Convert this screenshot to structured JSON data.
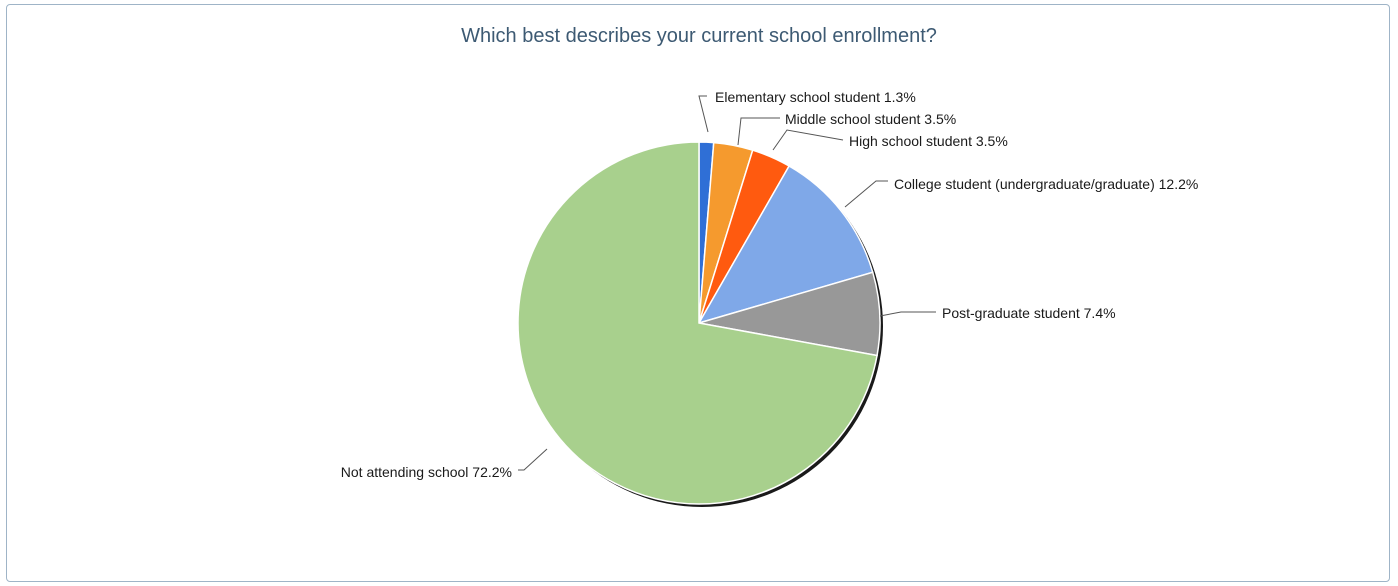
{
  "chart_data": {
    "type": "pie",
    "title": "Which best describes your current school enrollment?",
    "start_angle_deg": 0,
    "direction": "clockwise",
    "slices": [
      {
        "label": "Elementary school student",
        "value": 1.3,
        "value_label": "1.3%",
        "color": "#2f6fd6"
      },
      {
        "label": "Middle school student",
        "value": 3.5,
        "value_label": "3.5%",
        "color": "#f59a2e"
      },
      {
        "label": "High school student",
        "value": 3.5,
        "value_label": "3.5%",
        "color": "#ff5a0f"
      },
      {
        "label": "College student (undergraduate/graduate)",
        "value": 12.2,
        "value_label": "12.2%",
        "color": "#7fa8e8"
      },
      {
        "label": "Post-graduate student",
        "value": 7.4,
        "value_label": "7.4%",
        "color": "#989898"
      },
      {
        "label": "Not attending school",
        "value": 72.2,
        "value_label": "72.2%",
        "color": "#a8d08d"
      }
    ],
    "legend": "none",
    "labels": "outside-with-leader-lines"
  }
}
